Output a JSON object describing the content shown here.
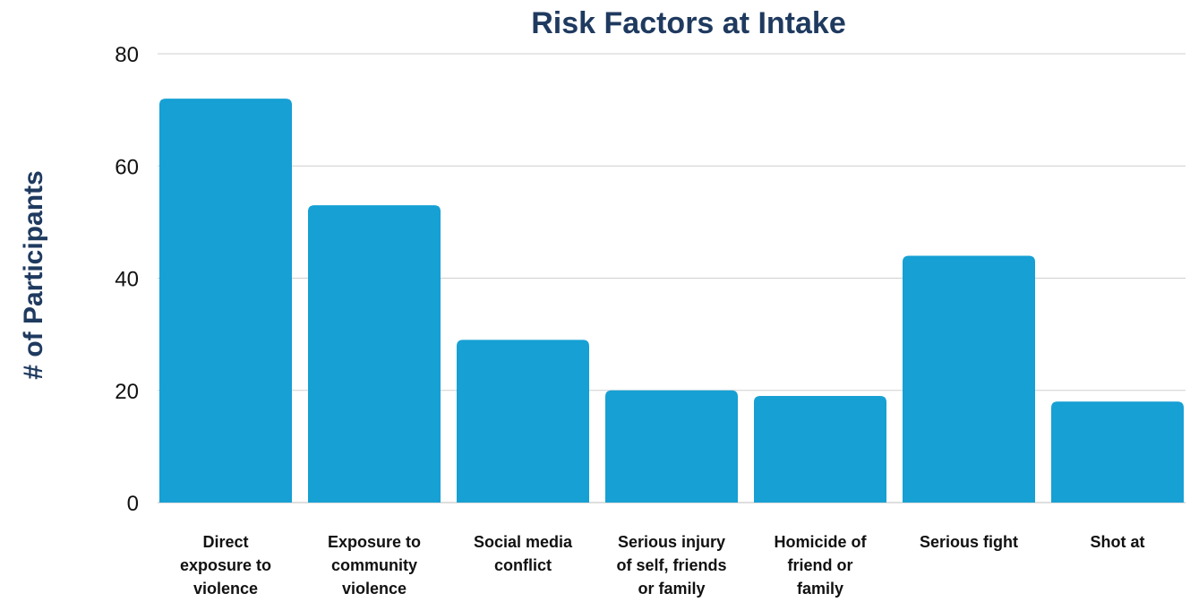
{
  "chart_data": {
    "type": "bar",
    "title": "Risk Factors at Intake",
    "xlabel": "",
    "ylabel": "# of Participants",
    "categories": [
      "Direct exposure to violence",
      "Exposure to community violence",
      "Social media conflict",
      "Serious injury of self, friends or family",
      "Homicide of friend or family",
      "Serious fight",
      "Shot at"
    ],
    "category_lines": [
      [
        "Direct",
        "exposure to",
        "violence"
      ],
      [
        "Exposure to",
        "community",
        "violence"
      ],
      [
        "Social media",
        "conflict"
      ],
      [
        "Serious injury",
        "of self, friends",
        "or family"
      ],
      [
        "Homicide of",
        "friend or",
        "family"
      ],
      [
        "Serious fight"
      ],
      [
        "Shot at"
      ]
    ],
    "values": [
      72,
      53,
      29,
      20,
      19,
      44,
      18
    ],
    "ylim": [
      0,
      80
    ],
    "yticks": [
      0,
      20,
      40,
      60,
      80
    ],
    "grid": true,
    "bar_color": "#16a0d4",
    "title_color": "#1f3a5f"
  }
}
